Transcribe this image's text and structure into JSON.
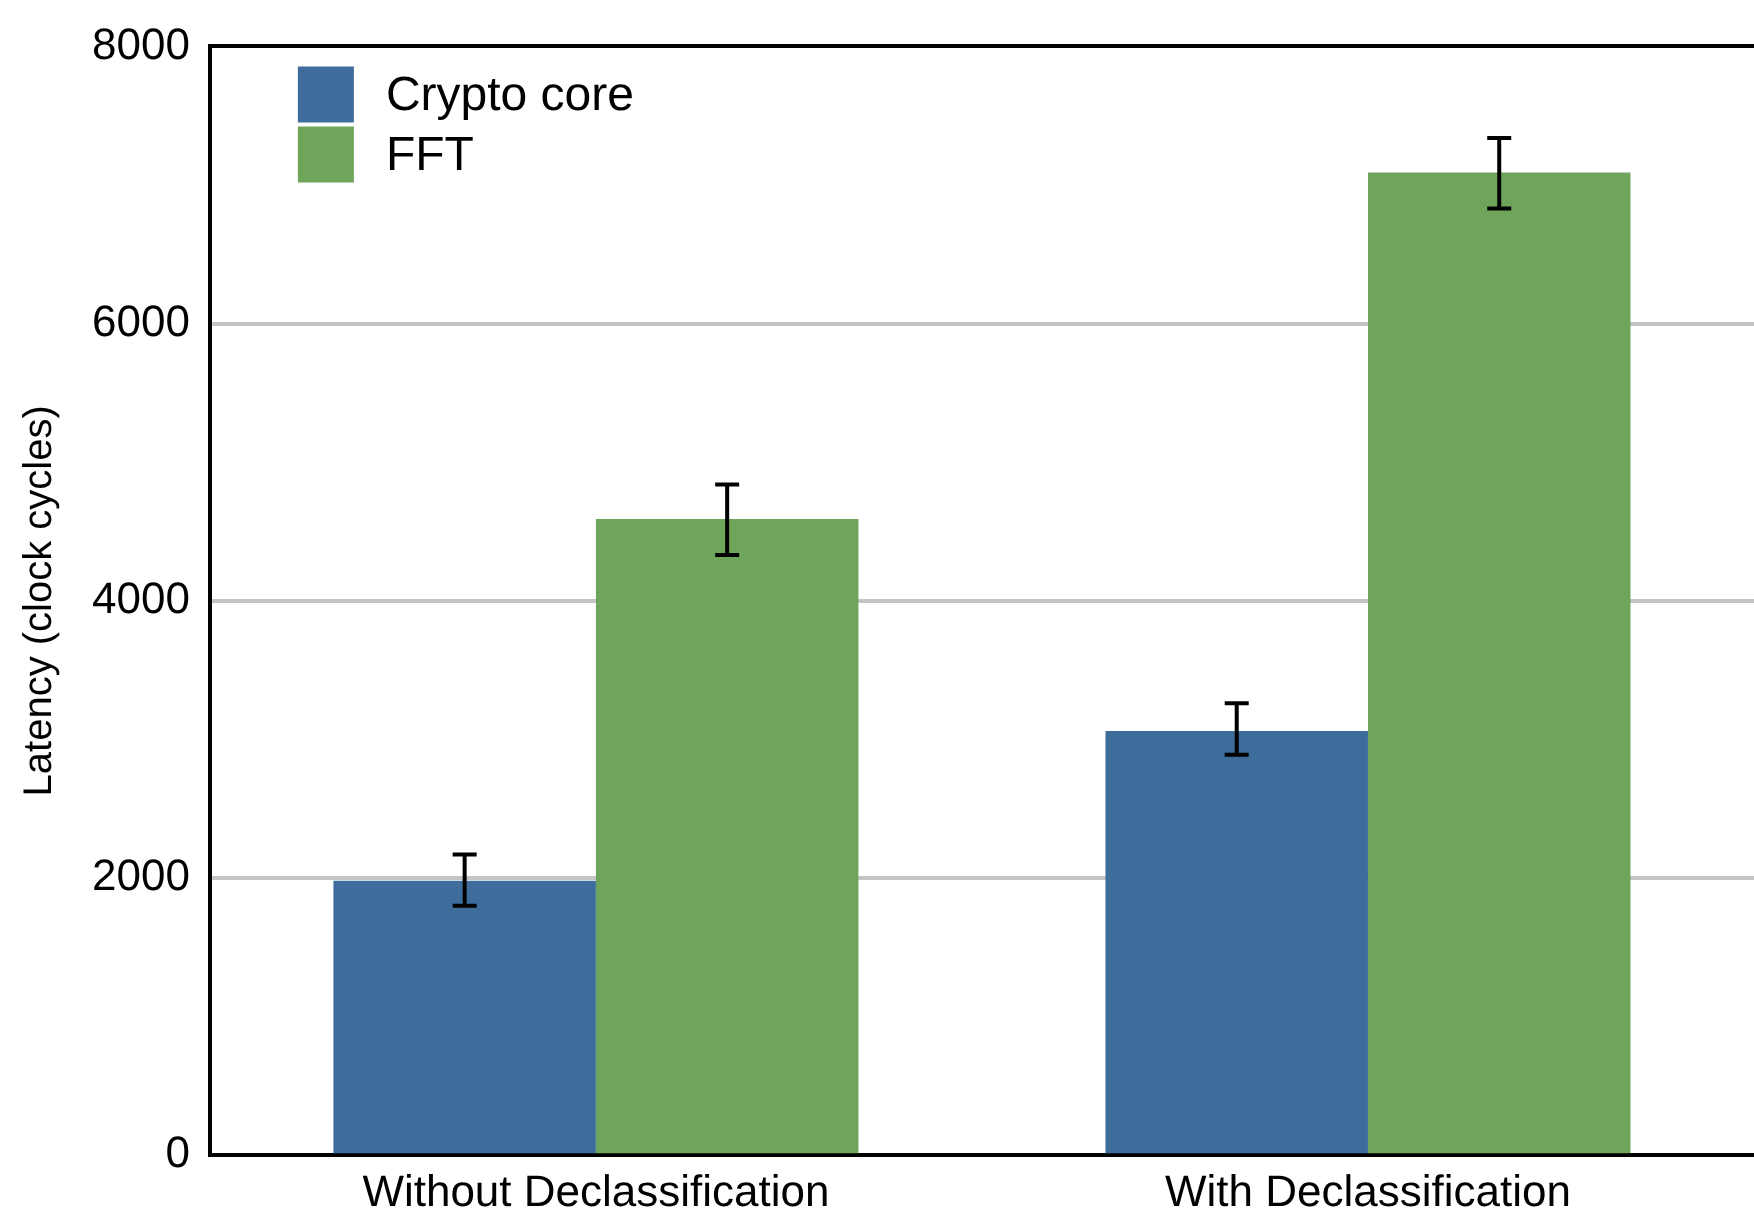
{
  "chart_data": {
    "type": "bar",
    "ylabel": "Latency (clock cycles)",
    "categories": [
      "Without Declassification",
      "With Declassification"
    ],
    "series": [
      {
        "name": "Crypto core",
        "color": "#3e6d9c",
        "values": [
          1980,
          3060
        ],
        "errors": [
          [
            1800,
            2170
          ],
          [
            2890,
            3260
          ]
        ]
      },
      {
        "name": "FFT",
        "color": "#6ea55a",
        "values": [
          4590,
          7090
        ],
        "errors": [
          [
            4330,
            4840
          ],
          [
            6830,
            7340
          ]
        ]
      }
    ],
    "ylim": [
      0,
      8000
    ],
    "yticks": [
      0,
      2000,
      4000,
      6000,
      8000
    ],
    "grid": "y",
    "legend": "top left"
  }
}
